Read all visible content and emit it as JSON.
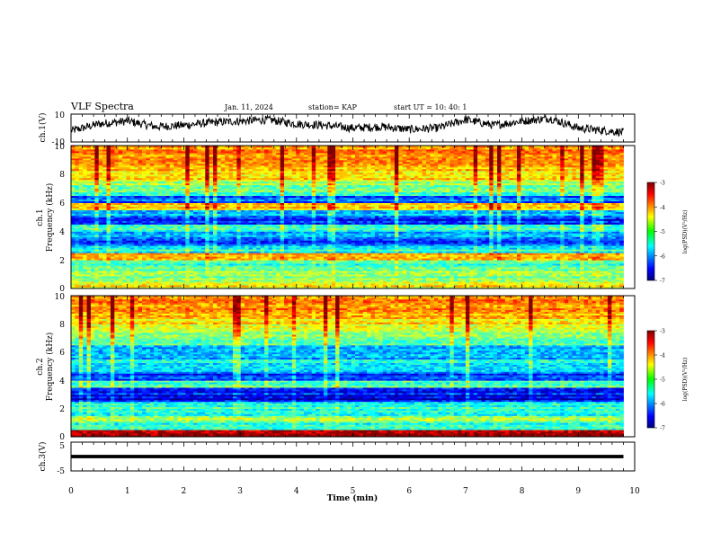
{
  "header": {
    "title": "VLF Spectra",
    "date": "Jan. 11, 2024",
    "station": "station= KAP",
    "start": "start  UT  =   10: 40: 1"
  },
  "panels": [
    {
      "id": "ch1-waveform",
      "ylabel": "ch.1(V)",
      "yticks": [
        "10",
        "-10"
      ]
    },
    {
      "id": "ch1-spectrogram",
      "ylabel1": "ch.1",
      "ylabel2": "Frequency (kHz)",
      "yticks": [
        "0",
        "2",
        "4",
        "6",
        "8",
        "10"
      ]
    },
    {
      "id": "ch2-spectrogram",
      "ylabel1": "ch.2",
      "ylabel2": "Frequency (kHz)",
      "yticks": [
        "0",
        "2",
        "4",
        "6",
        "8",
        "10"
      ]
    },
    {
      "id": "ch3-waveform",
      "ylabel": "ch.3(V)",
      "yticks": [
        "5",
        "-5"
      ]
    }
  ],
  "xaxis": {
    "label": "Time (min)",
    "ticks": [
      "0",
      "1",
      "2",
      "3",
      "4",
      "5",
      "6",
      "7",
      "8",
      "9",
      "10"
    ]
  },
  "colorbar": {
    "label": "log(PSD)(V²/Hz)",
    "ticks": [
      "-3",
      "-4",
      "-5",
      "-6",
      "-7"
    ]
  },
  "colors": {
    "ch3_fill": "#000000",
    "line": "#000000"
  },
  "chart_data": [
    {
      "type": "line",
      "title": "VLF Spectra",
      "ylabel": "ch.1(V)",
      "xlabel": "Time (min)",
      "xlim": [
        0,
        10
      ],
      "ylim": [
        -10,
        10
      ],
      "data_end_min": 9.8,
      "series": [
        {
          "x": [
            0,
            0.5,
            1,
            1.5,
            2,
            2.5,
            3,
            3.5,
            4,
            4.5,
            5,
            5.5,
            6,
            6.5,
            7,
            7.5,
            8,
            8.5,
            9,
            9.5,
            9.8
          ],
          "values": [
            -2,
            3,
            5,
            1,
            2,
            4,
            5,
            6,
            3,
            2,
            0,
            1,
            -1,
            0,
            6,
            2,
            5,
            7,
            0,
            -2,
            -3
          ]
        }
      ]
    },
    {
      "type": "heatmap",
      "ylabel": "ch.1 Frequency (kHz)",
      "xlabel": "Time (min)",
      "xlim": [
        0,
        10
      ],
      "ylim": [
        0,
        10
      ],
      "data_end_min": 9.8,
      "colorbar_range": [
        -7,
        -3
      ],
      "colorbar_label": "log(PSD)(V²/Hz)",
      "freq_bands_kHz": [
        0,
        0.5,
        1,
        1.5,
        2,
        2.5,
        3,
        3.5,
        4,
        4.5,
        5,
        5.5,
        6,
        6.5,
        7,
        7.5,
        8,
        8.5,
        9,
        9.5
      ],
      "band_logpsd": [
        -4.5,
        -5.0,
        -5.0,
        -5.3,
        -4.3,
        -5.4,
        -6.2,
        -5.9,
        -5.4,
        -6.4,
        -5.8,
        -4.4,
        -6.1,
        -5.2,
        -4.9,
        -4.4,
        -4.3,
        -4.2,
        -4.1,
        -4.0
      ]
    },
    {
      "type": "heatmap",
      "ylabel": "ch.2 Frequency (kHz)",
      "xlabel": "Time (min)",
      "xlim": [
        0,
        10
      ],
      "ylim": [
        0,
        10
      ],
      "data_end_min": 9.8,
      "colorbar_range": [
        -7,
        -3
      ],
      "colorbar_label": "log(PSD)(V²/Hz)",
      "freq_bands_kHz": [
        0,
        0.5,
        1,
        1.5,
        2,
        2.5,
        3,
        3.5,
        4,
        4.5,
        5,
        5.5,
        6,
        6.5,
        7,
        7.5,
        8,
        8.5,
        9,
        9.5
      ],
      "band_logpsd": [
        -3.2,
        -5.3,
        -5.0,
        -5.5,
        -5.4,
        -6.6,
        -6.4,
        -5.2,
        -6.3,
        -5.8,
        -5.4,
        -5.9,
        -5.7,
        -5.1,
        -4.9,
        -4.5,
        -4.4,
        -4.2,
        -4.1,
        -4.0
      ]
    },
    {
      "type": "line",
      "ylabel": "ch.3(V)",
      "xlabel": "Time (min)",
      "xlim": [
        0,
        10
      ],
      "ylim": [
        -5,
        5
      ],
      "data_end_min": 9.8,
      "series": [
        {
          "x": [
            0,
            9.8
          ],
          "values": [
            0,
            0
          ],
          "band_width_V": 1.2
        }
      ]
    }
  ]
}
